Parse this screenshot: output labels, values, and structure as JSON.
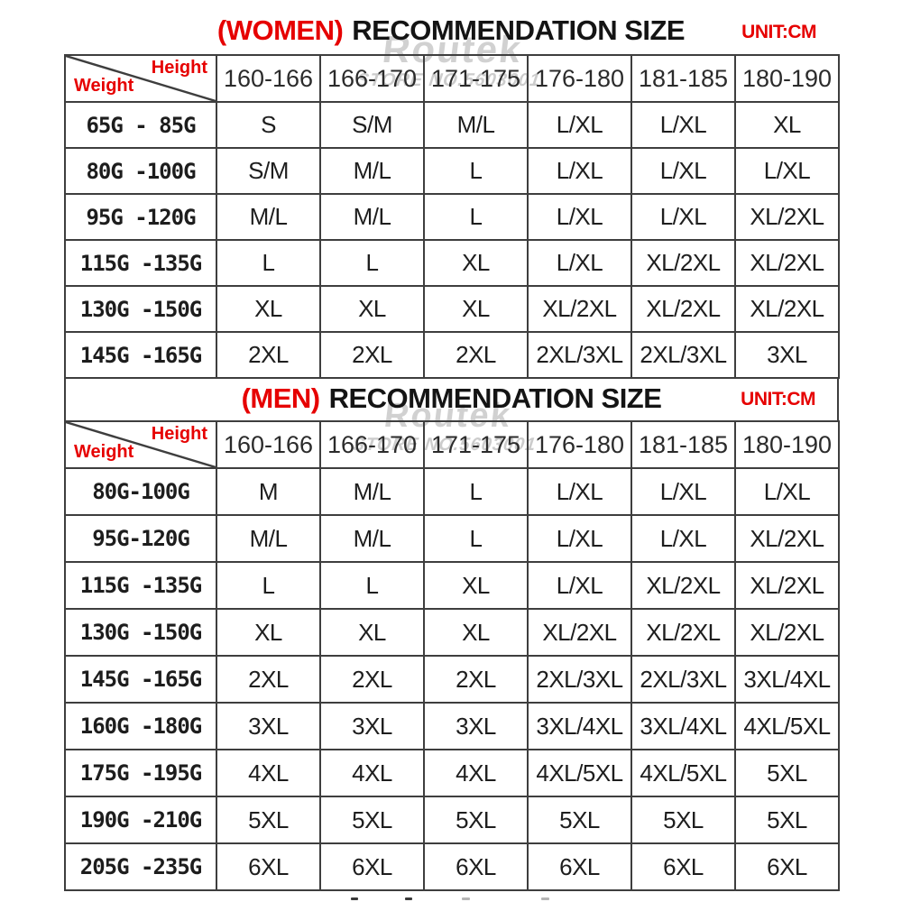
{
  "watermark": {
    "brand": "Routek",
    "store_line": "STORE NO.5603001"
  },
  "colors": {
    "accent_red": "#e60000",
    "border_gray": "#3e3e3e",
    "text_dark": "#1e1e1e"
  },
  "chart_data": [
    {
      "type": "table",
      "audience": "WOMEN",
      "title_prefix": "(WOMEN)",
      "title_main": "RECOMMENDATION SIZE",
      "unit_label": "UNIT:CM",
      "corner": {
        "height_label": "Height",
        "weight_label": "Weight"
      },
      "height_columns_cm": [
        "160-166",
        "166-170",
        "171-175",
        "176-180",
        "181-185",
        "180-190"
      ],
      "rows": [
        {
          "weight_range": "65G - 85G",
          "sizes": [
            "S",
            "S/M",
            "M/L",
            "L/XL",
            "L/XL",
            "XL"
          ]
        },
        {
          "weight_range": "80G -100G",
          "sizes": [
            "S/M",
            "M/L",
            "L",
            "L/XL",
            "L/XL",
            "L/XL"
          ]
        },
        {
          "weight_range": "95G -120G",
          "sizes": [
            "M/L",
            "M/L",
            "L",
            "L/XL",
            "L/XL",
            "XL/2XL"
          ]
        },
        {
          "weight_range": "115G -135G",
          "sizes": [
            "L",
            "L",
            "XL",
            "L/XL",
            "XL/2XL",
            "XL/2XL"
          ]
        },
        {
          "weight_range": "130G -150G",
          "sizes": [
            "XL",
            "XL",
            "XL",
            "XL/2XL",
            "XL/2XL",
            "XL/2XL"
          ]
        },
        {
          "weight_range": "145G -165G",
          "sizes": [
            "2XL",
            "2XL",
            "2XL",
            "2XL/3XL",
            "2XL/3XL",
            "3XL"
          ]
        }
      ]
    },
    {
      "type": "table",
      "audience": "MEN",
      "title_prefix": "(MEN)",
      "title_main": "RECOMMENDATION SIZE",
      "unit_label": "UNIT:CM",
      "corner": {
        "height_label": "Height",
        "weight_label": "Weight"
      },
      "height_columns_cm": [
        "160-166",
        "166-170",
        "171-175",
        "176-180",
        "181-185",
        "180-190"
      ],
      "rows": [
        {
          "weight_range": "80G-100G",
          "sizes": [
            "M",
            "M/L",
            "L",
            "L/XL",
            "L/XL",
            "L/XL"
          ]
        },
        {
          "weight_range": "95G-120G",
          "sizes": [
            "M/L",
            "M/L",
            "L",
            "L/XL",
            "L/XL",
            "XL/2XL"
          ]
        },
        {
          "weight_range": "115G -135G",
          "sizes": [
            "L",
            "L",
            "XL",
            "L/XL",
            "XL/2XL",
            "XL/2XL"
          ]
        },
        {
          "weight_range": "130G -150G",
          "sizes": [
            "XL",
            "XL",
            "XL",
            "XL/2XL",
            "XL/2XL",
            "XL/2XL"
          ]
        },
        {
          "weight_range": "145G -165G",
          "sizes": [
            "2XL",
            "2XL",
            "2XL",
            "2XL/3XL",
            "2XL/3XL",
            "3XL/4XL"
          ]
        },
        {
          "weight_range": "160G -180G",
          "sizes": [
            "3XL",
            "3XL",
            "3XL",
            "3XL/4XL",
            "3XL/4XL",
            "4XL/5XL"
          ]
        },
        {
          "weight_range": "175G -195G",
          "sizes": [
            "4XL",
            "4XL",
            "4XL",
            "4XL/5XL",
            "4XL/5XL",
            "5XL"
          ]
        },
        {
          "weight_range": "190G -210G",
          "sizes": [
            "5XL",
            "5XL",
            "5XL",
            "5XL",
            "5XL",
            "5XL"
          ]
        },
        {
          "weight_range": "205G -235G",
          "sizes": [
            "6XL",
            "6XL",
            "6XL",
            "6XL",
            "6XL",
            "6XL"
          ]
        }
      ]
    }
  ]
}
